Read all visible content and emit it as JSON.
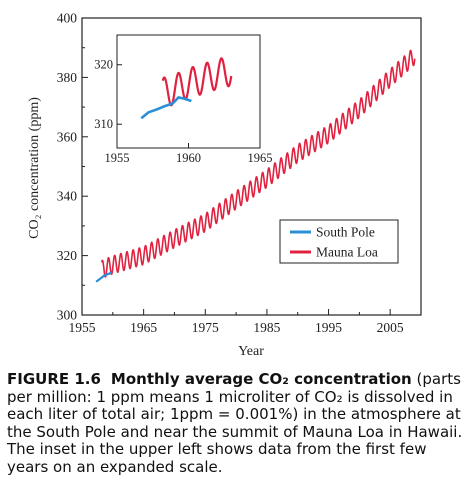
{
  "chart_data": [
    {
      "type": "line",
      "xlabel": "Year",
      "ylabel": "CO₂ concentration (ppm)",
      "xlim": [
        1955,
        2010
      ],
      "ylim": [
        300,
        400
      ],
      "xticks": [
        1955,
        1965,
        1975,
        1985,
        1995,
        2005
      ],
      "yticks": [
        300,
        320,
        340,
        360,
        380,
        400
      ],
      "legend": {
        "placement": "lower-right",
        "entries": [
          "South Pole",
          "Mauna Loa"
        ]
      },
      "series": [
        {
          "name": "South Pole",
          "color": "#2a8fd6",
          "x": [
            1957.3,
            1957.8,
            1958.2,
            1958.6,
            1959.0,
            1959.4,
            1959.8
          ],
          "y": [
            311.2,
            312.0,
            312.6,
            313.3,
            313.6,
            313.9,
            314.4
          ]
        },
        {
          "name": "Mauna Loa",
          "color": "#e0213f",
          "seasonal_amplitude_ppm": 3.0,
          "x": [
            1958.2,
            1960,
            1965,
            1970,
            1975,
            1980,
            1985,
            1990,
            1995,
            2000,
            2005,
            2009
          ],
          "y": [
            315.3,
            316.9,
            320.0,
            325.7,
            331.1,
            338.7,
            346.0,
            354.4,
            360.9,
            369.5,
            379.8,
            387.4
          ]
        }
      ]
    },
    {
      "type": "line",
      "xlim": [
        1955,
        1965
      ],
      "ylim": [
        306,
        325
      ],
      "xticks": [
        1955,
        1960,
        1965
      ],
      "yticks": [
        310,
        320
      ],
      "series": [
        {
          "name": "South Pole",
          "color": "#2a8fd6",
          "x": [
            1956.7,
            1957.2,
            1957.8,
            1958.3,
            1958.9,
            1959.3,
            1959.7,
            1960.2
          ],
          "y": [
            311.0,
            312.0,
            312.5,
            313.0,
            313.5,
            314.5,
            314.3,
            313.9
          ]
        },
        {
          "name": "Mauna Loa",
          "color": "#e0213f",
          "seasonal_amplitude_ppm": 2.5,
          "x": [
            1958.2,
            1959.0,
            1960.0,
            1961.0,
            1962.0,
            1963.0
          ],
          "y": [
            315.3,
            315.8,
            316.9,
            317.6,
            318.4,
            319.0
          ]
        }
      ]
    }
  ],
  "caption": {
    "figure_number": "FIGURE 1.6",
    "title_text": "Monthly average CO₂ concentration",
    "body_text": "(parts per million: 1 ppm means 1 microliter of CO₂ is dissolved in each liter of total air; 1ppm = 0.001%) in the atmosphere at the South Pole and near the summit of Mauna Loa in Hawaii. The inset in the upper left shows data from the first few years on an expanded scale."
  }
}
